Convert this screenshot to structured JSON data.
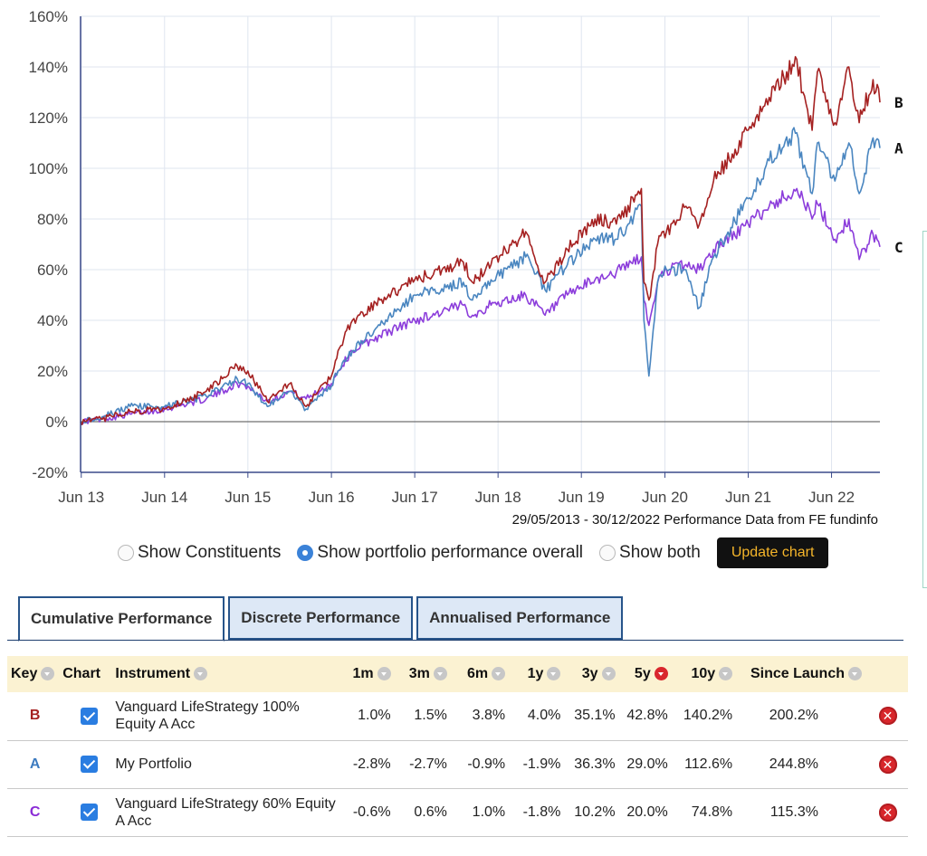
{
  "chart_data": {
    "type": "line",
    "x_tick_labels": [
      "Jun 13",
      "Jun 14",
      "Jun 15",
      "Jun 16",
      "Jun 17",
      "Jun 18",
      "Jun 19",
      "Jun 20",
      "Jun 21",
      "Jun 22"
    ],
    "y_tick_labels": [
      "-20%",
      "0%",
      "20%",
      "40%",
      "60%",
      "80%",
      "100%",
      "120%",
      "140%",
      "160%"
    ],
    "ylim": [
      -20,
      160
    ],
    "xlim": [
      "2013-05-29",
      "2022-12-30"
    ],
    "grid": true,
    "series": [
      {
        "name": "A",
        "color": "#4a86c0",
        "points": [
          [
            "2013-05-29",
            0
          ],
          [
            "2013-09-01",
            2
          ],
          [
            "2014-01-01",
            6
          ],
          [
            "2014-06-01",
            6
          ],
          [
            "2014-12-01",
            10
          ],
          [
            "2015-04-15",
            17
          ],
          [
            "2015-06-01",
            15
          ],
          [
            "2015-08-25",
            6
          ],
          [
            "2015-12-01",
            12
          ],
          [
            "2016-02-11",
            5
          ],
          [
            "2016-06-01",
            14
          ],
          [
            "2016-06-30",
            20
          ],
          [
            "2016-09-01",
            28
          ],
          [
            "2016-12-31",
            38
          ],
          [
            "2017-06-01",
            50
          ],
          [
            "2017-12-31",
            55
          ],
          [
            "2018-02-09",
            48
          ],
          [
            "2018-05-01",
            56
          ],
          [
            "2018-09-30",
            65
          ],
          [
            "2018-12-24",
            52
          ],
          [
            "2019-04-01",
            62
          ],
          [
            "2019-07-31",
            72
          ],
          [
            "2019-11-01",
            72
          ],
          [
            "2020-02-19",
            85
          ],
          [
            "2020-03-01",
            40
          ],
          [
            "2020-03-23",
            18
          ],
          [
            "2020-04-30",
            55
          ],
          [
            "2020-06-08",
            60
          ],
          [
            "2020-09-01",
            60
          ],
          [
            "2020-10-30",
            45
          ],
          [
            "2020-12-31",
            65
          ],
          [
            "2021-06-01",
            88
          ],
          [
            "2021-09-01",
            103
          ],
          [
            "2021-12-31",
            114
          ],
          [
            "2022-01-27",
            100
          ],
          [
            "2022-03-08",
            90
          ],
          [
            "2022-03-31",
            110
          ],
          [
            "2022-06-16",
            95
          ],
          [
            "2022-08-16",
            110
          ],
          [
            "2022-09-30",
            90
          ],
          [
            "2022-11-30",
            112
          ],
          [
            "2022-12-30",
            108
          ]
        ]
      },
      {
        "name": "B",
        "color": "#a52121",
        "points": [
          [
            "2013-05-29",
            0
          ],
          [
            "2013-09-01",
            1
          ],
          [
            "2014-01-01",
            4
          ],
          [
            "2014-06-01",
            5
          ],
          [
            "2014-12-01",
            12
          ],
          [
            "2015-04-15",
            22
          ],
          [
            "2015-06-01",
            20
          ],
          [
            "2015-08-25",
            8
          ],
          [
            "2015-12-01",
            15
          ],
          [
            "2016-02-11",
            6
          ],
          [
            "2016-06-01",
            18
          ],
          [
            "2016-06-30",
            28
          ],
          [
            "2016-09-01",
            40
          ],
          [
            "2016-12-31",
            48
          ],
          [
            "2017-06-01",
            56
          ],
          [
            "2017-12-31",
            63
          ],
          [
            "2018-02-09",
            55
          ],
          [
            "2018-05-01",
            62
          ],
          [
            "2018-09-30",
            75
          ],
          [
            "2018-12-24",
            55
          ],
          [
            "2019-04-01",
            68
          ],
          [
            "2019-07-31",
            80
          ],
          [
            "2019-11-01",
            78
          ],
          [
            "2020-02-19",
            92
          ],
          [
            "2020-03-01",
            55
          ],
          [
            "2020-03-23",
            48
          ],
          [
            "2020-04-30",
            70
          ],
          [
            "2020-06-08",
            75
          ],
          [
            "2020-09-01",
            85
          ],
          [
            "2020-10-30",
            78
          ],
          [
            "2020-12-31",
            95
          ],
          [
            "2021-06-01",
            115
          ],
          [
            "2021-09-01",
            128
          ],
          [
            "2021-12-31",
            143
          ],
          [
            "2022-01-27",
            130
          ],
          [
            "2022-03-08",
            115
          ],
          [
            "2022-03-31",
            138
          ],
          [
            "2022-06-16",
            118
          ],
          [
            "2022-08-16",
            140
          ],
          [
            "2022-09-30",
            118
          ],
          [
            "2022-11-30",
            135
          ],
          [
            "2022-12-30",
            126
          ]
        ]
      },
      {
        "name": "C",
        "color": "#8c3ddb",
        "points": [
          [
            "2013-05-29",
            0
          ],
          [
            "2013-09-01",
            1
          ],
          [
            "2014-01-01",
            3
          ],
          [
            "2014-06-01",
            5
          ],
          [
            "2014-12-01",
            9
          ],
          [
            "2015-04-15",
            15
          ],
          [
            "2015-06-01",
            14
          ],
          [
            "2015-08-25",
            8
          ],
          [
            "2015-12-01",
            12
          ],
          [
            "2016-02-11",
            9
          ],
          [
            "2016-06-01",
            15
          ],
          [
            "2016-06-30",
            20
          ],
          [
            "2016-09-01",
            28
          ],
          [
            "2016-12-31",
            34
          ],
          [
            "2017-06-01",
            40
          ],
          [
            "2017-12-31",
            46
          ],
          [
            "2018-02-09",
            42
          ],
          [
            "2018-05-01",
            46
          ],
          [
            "2018-09-30",
            50
          ],
          [
            "2018-12-24",
            42
          ],
          [
            "2019-04-01",
            50
          ],
          [
            "2019-07-31",
            56
          ],
          [
            "2019-11-01",
            59
          ],
          [
            "2020-02-19",
            65
          ],
          [
            "2020-03-01",
            48
          ],
          [
            "2020-03-23",
            38
          ],
          [
            "2020-04-30",
            55
          ],
          [
            "2020-06-08",
            60
          ],
          [
            "2020-09-01",
            62
          ],
          [
            "2020-10-30",
            60
          ],
          [
            "2020-12-31",
            68
          ],
          [
            "2021-06-01",
            78
          ],
          [
            "2021-09-01",
            85
          ],
          [
            "2021-12-31",
            92
          ],
          [
            "2022-01-27",
            88
          ],
          [
            "2022-03-08",
            80
          ],
          [
            "2022-03-31",
            86
          ],
          [
            "2022-06-16",
            72
          ],
          [
            "2022-08-16",
            80
          ],
          [
            "2022-09-30",
            64
          ],
          [
            "2022-11-30",
            74
          ],
          [
            "2022-12-30",
            69
          ]
        ]
      }
    ],
    "source_note": "29/05/2013 - 30/12/2022 Performance Data from FE fundinfo"
  },
  "controls": {
    "radio_options": [
      {
        "label": "Show Constituents",
        "checked": false
      },
      {
        "label": "Show portfolio performance overall",
        "checked": true
      },
      {
        "label": "Show both",
        "checked": false
      }
    ],
    "update_button": "Update chart"
  },
  "tabs": [
    {
      "label": "Cumulative Performance",
      "active": true
    },
    {
      "label": "Discrete Performance",
      "active": false
    },
    {
      "label": "Annualised Performance",
      "active": false
    }
  ],
  "table": {
    "headers": {
      "key": "Key",
      "chart": "Chart",
      "instrument": "Instrument",
      "m1": "1m",
      "m3": "3m",
      "m6": "6m",
      "y1": "1y",
      "y3": "3y",
      "y5": "5y",
      "y10": "10y",
      "since": "Since Launch"
    },
    "rows": [
      {
        "key": "B",
        "key_color": "#a52121",
        "instrument": "Vanguard LifeStrategy 100% Equity A Acc",
        "m1": "1.0%",
        "m3": "1.5%",
        "m6": "3.8%",
        "y1": "4.0%",
        "y3": "35.1%",
        "y5": "42.8%",
        "y10": "140.2%",
        "since": "200.2%"
      },
      {
        "key": "A",
        "key_color": "#3c7bc0",
        "instrument": "My Portfolio",
        "m1": "-2.8%",
        "m3": "-2.7%",
        "m6": "-0.9%",
        "y1": "-1.9%",
        "y3": "36.3%",
        "y5": "29.0%",
        "y10": "112.6%",
        "since": "244.8%"
      },
      {
        "key": "C",
        "key_color": "#8a2bd6",
        "instrument": "Vanguard LifeStrategy 60% Equity A Acc",
        "m1": "-0.6%",
        "m3": "0.6%",
        "m6": "1.0%",
        "y1": "-1.8%",
        "y3": "10.2%",
        "y5": "20.0%",
        "y10": "74.8%",
        "since": "115.3%"
      }
    ]
  }
}
